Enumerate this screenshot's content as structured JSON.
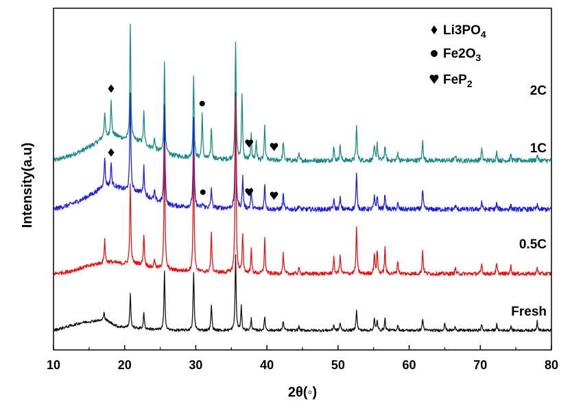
{
  "chart_data": {
    "type": "line",
    "xlabel": "2θ(◦)",
    "ylabel": "Intensity(a.u)",
    "xlim": [
      10,
      80
    ],
    "x_ticks": [
      "10",
      "20",
      "30",
      "40",
      "50",
      "60",
      "70",
      "80"
    ],
    "grid": false,
    "legend_placement": "top-right",
    "legend": [
      {
        "symbol": "diamond",
        "label": "Li3PO4",
        "sub": "4"
      },
      {
        "symbol": "circle",
        "label": "Fe2O3",
        "sub": "3"
      },
      {
        "symbol": "heart",
        "label": "FeP2",
        "sub": "2"
      }
    ],
    "series": [
      {
        "name": "2C",
        "color": "#1a8a86",
        "offset": 0.97,
        "noise": 0.012,
        "base": [
          [
            10,
            0.0
          ],
          [
            12,
            0.02
          ],
          [
            14,
            0.05
          ],
          [
            16,
            0.09
          ],
          [
            17,
            0.12
          ],
          [
            18.5,
            0.13
          ],
          [
            20,
            0.11
          ],
          [
            22,
            0.1
          ],
          [
            24,
            0.06
          ],
          [
            26,
            0.03
          ],
          [
            30,
            0.01
          ],
          [
            40,
            0.0
          ],
          [
            80,
            0.0
          ]
        ],
        "peaks": [
          [
            17.2,
            0.13
          ],
          [
            18.1,
            0.19
          ],
          [
            20.8,
            0.58
          ],
          [
            22.7,
            0.16
          ],
          [
            24.2,
            0.06
          ],
          [
            25.6,
            0.46
          ],
          [
            29.7,
            0.43
          ],
          [
            30.9,
            0.23
          ],
          [
            32.2,
            0.16
          ],
          [
            35.6,
            0.61
          ],
          [
            36.5,
            0.34
          ],
          [
            37.8,
            0.13
          ],
          [
            38.5,
            0.1
          ],
          [
            39.7,
            0.17
          ],
          [
            42.3,
            0.1
          ],
          [
            44.5,
            0.03
          ],
          [
            49.4,
            0.07
          ],
          [
            50.3,
            0.08
          ],
          [
            52.6,
            0.18
          ],
          [
            55.1,
            0.07
          ],
          [
            55.5,
            0.09
          ],
          [
            56.6,
            0.08
          ],
          [
            58.4,
            0.04
          ],
          [
            61.9,
            0.1
          ],
          [
            66.5,
            0.03
          ],
          [
            70.2,
            0.06
          ],
          [
            72.3,
            0.04
          ],
          [
            74.3,
            0.03
          ],
          [
            78.0,
            0.03
          ]
        ],
        "markers": [
          {
            "x": 18.1,
            "symbol": "diamond",
            "dy": 55
          },
          {
            "x": 30.9,
            "symbol": "circle",
            "dy": 35
          },
          {
            "x": 37.5,
            "symbol": "heart",
            "dy": 25
          },
          {
            "x": 41.0,
            "symbol": "heart",
            "dy": 20
          }
        ]
      },
      {
        "name": "1C",
        "color": "#1e1edc",
        "offset": 0.72,
        "noise": 0.012,
        "base": [
          [
            10,
            0.0
          ],
          [
            12,
            0.02
          ],
          [
            14,
            0.05
          ],
          [
            16,
            0.09
          ],
          [
            17,
            0.12
          ],
          [
            18.5,
            0.12
          ],
          [
            20,
            0.1
          ],
          [
            22,
            0.09
          ],
          [
            24,
            0.05
          ],
          [
            26,
            0.02
          ],
          [
            30,
            0.01
          ],
          [
            40,
            0.0
          ],
          [
            80,
            0.0
          ]
        ],
        "peaks": [
          [
            17.2,
            0.15
          ],
          [
            18.1,
            0.12
          ],
          [
            20.8,
            0.5
          ],
          [
            22.7,
            0.14
          ],
          [
            24.2,
            0.05
          ],
          [
            25.6,
            0.5
          ],
          [
            29.7,
            0.45
          ],
          [
            31.0,
            0.02
          ],
          [
            32.2,
            0.1
          ],
          [
            35.6,
            0.58
          ],
          [
            36.6,
            0.16
          ],
          [
            37.8,
            0.1
          ],
          [
            39.7,
            0.13
          ],
          [
            42.3,
            0.08
          ],
          [
            44.5,
            0.02
          ],
          [
            49.4,
            0.05
          ],
          [
            50.3,
            0.06
          ],
          [
            52.6,
            0.18
          ],
          [
            55.1,
            0.06
          ],
          [
            55.5,
            0.07
          ],
          [
            56.6,
            0.08
          ],
          [
            58.4,
            0.03
          ],
          [
            61.9,
            0.1
          ],
          [
            66.5,
            0.02
          ],
          [
            70.2,
            0.04
          ],
          [
            72.3,
            0.03
          ],
          [
            74.3,
            0.02
          ],
          [
            78.0,
            0.02
          ]
        ],
        "markers": [
          {
            "x": 18.1,
            "symbol": "diamond",
            "dy": 50
          },
          {
            "x": 31.0,
            "symbol": "circle",
            "dy": 25
          },
          {
            "x": 37.5,
            "symbol": "heart",
            "dy": 25
          },
          {
            "x": 41.0,
            "symbol": "heart",
            "dy": 20
          }
        ]
      },
      {
        "name": "0.5C",
        "color": "#e81010",
        "offset": 0.39,
        "noise": 0.01,
        "base": [
          [
            10,
            0.0
          ],
          [
            12,
            0.01
          ],
          [
            14,
            0.03
          ],
          [
            16,
            0.05
          ],
          [
            18,
            0.06
          ],
          [
            20,
            0.05
          ],
          [
            22,
            0.05
          ],
          [
            24,
            0.03
          ],
          [
            26,
            0.02
          ],
          [
            30,
            0.01
          ],
          [
            40,
            0.0
          ],
          [
            80,
            0.0
          ]
        ],
        "peaks": [
          [
            17.2,
            0.12
          ],
          [
            20.8,
            0.42
          ],
          [
            22.7,
            0.16
          ],
          [
            24.2,
            0.05
          ],
          [
            25.6,
            0.63
          ],
          [
            29.7,
            0.6
          ],
          [
            32.2,
            0.2
          ],
          [
            35.6,
            0.9
          ],
          [
            36.6,
            0.2
          ],
          [
            37.8,
            0.12
          ],
          [
            39.7,
            0.18
          ],
          [
            42.3,
            0.1
          ],
          [
            44.5,
            0.03
          ],
          [
            49.4,
            0.08
          ],
          [
            50.3,
            0.1
          ],
          [
            52.6,
            0.24
          ],
          [
            55.1,
            0.1
          ],
          [
            55.5,
            0.12
          ],
          [
            56.6,
            0.13
          ],
          [
            58.4,
            0.07
          ],
          [
            61.9,
            0.12
          ],
          [
            66.5,
            0.03
          ],
          [
            70.2,
            0.05
          ],
          [
            72.3,
            0.05
          ],
          [
            74.3,
            0.04
          ],
          [
            78.0,
            0.03
          ]
        ],
        "markers": []
      },
      {
        "name": "Fresh",
        "color": "#111111",
        "offset": 0.1,
        "noise": 0.007,
        "base": [
          [
            10,
            0.0
          ],
          [
            12,
            0.02
          ],
          [
            14,
            0.04
          ],
          [
            16,
            0.05
          ],
          [
            17.5,
            0.05
          ],
          [
            19,
            0.02
          ],
          [
            22,
            0.01
          ],
          [
            26,
            0.0
          ],
          [
            80,
            0.0
          ]
        ],
        "peaks": [
          [
            17.1,
            0.05
          ],
          [
            20.8,
            0.17
          ],
          [
            22.7,
            0.08
          ],
          [
            25.6,
            0.3
          ],
          [
            29.7,
            0.3
          ],
          [
            32.2,
            0.13
          ],
          [
            35.6,
            0.38
          ],
          [
            36.4,
            0.12
          ],
          [
            37.8,
            0.06
          ],
          [
            39.7,
            0.07
          ],
          [
            42.3,
            0.05
          ],
          [
            44.5,
            0.02
          ],
          [
            49.4,
            0.03
          ],
          [
            50.3,
            0.04
          ],
          [
            52.6,
            0.11
          ],
          [
            55.1,
            0.06
          ],
          [
            55.5,
            0.05
          ],
          [
            56.6,
            0.06
          ],
          [
            58.4,
            0.03
          ],
          [
            61.9,
            0.06
          ],
          [
            65.0,
            0.04
          ],
          [
            66.5,
            0.02
          ],
          [
            70.2,
            0.03
          ],
          [
            72.3,
            0.03
          ],
          [
            74.3,
            0.02
          ],
          [
            78.0,
            0.05
          ]
        ],
        "markers": []
      }
    ]
  }
}
